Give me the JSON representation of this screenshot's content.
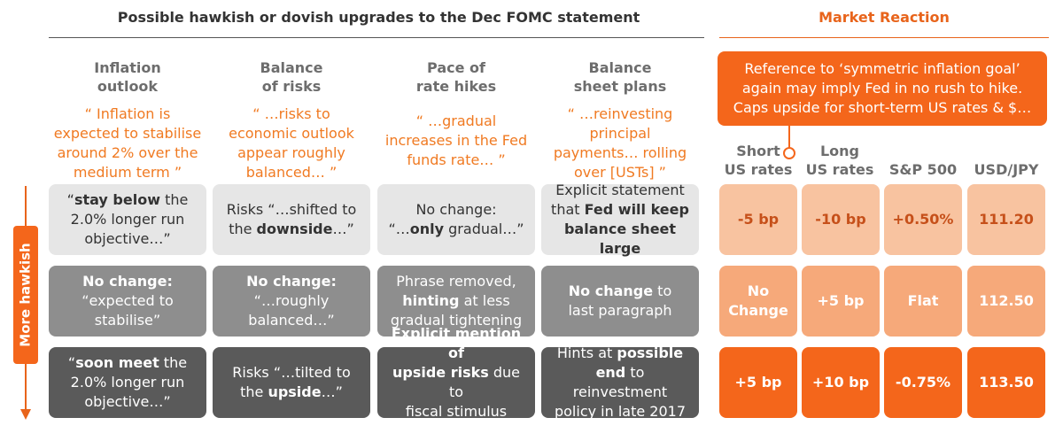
{
  "title_left": "Possible hawkish or dovish upgrades to the Dec FOMC statement",
  "title_right": "Market Reaction",
  "columns": [
    {
      "header": "Inflation\noutlook",
      "quote": "“ Inflation is\nexpected to stabilise\naround 2% over the\nmedium term ”"
    },
    {
      "header": "Balance\nof risks",
      "quote": "“ …risks to\neconomic outlook\nappear roughly\nbalanced… ”"
    },
    {
      "header": "Pace of\nrate hikes",
      "quote": "“ …gradual\nincreases in the Fed\nfunds rate… ”"
    },
    {
      "header": "Balance\nsheet plans",
      "quote": "“ …reinvesting\nprincipal\npayments… rolling\nover [USTs] ”"
    }
  ],
  "rows": [
    [
      [
        {
          "t": "“"
        },
        {
          "t": "stay below",
          "b": true
        },
        {
          "t": " the\n2.0% longer run\nobjective…”"
        }
      ],
      [
        {
          "t": "Risks “…shifted to\nthe "
        },
        {
          "t": "downside",
          "b": true
        },
        {
          "t": "…”"
        }
      ],
      [
        {
          "t": "No change:\n“…"
        },
        {
          "t": "only",
          "b": true
        },
        {
          "t": " gradual…”"
        }
      ],
      [
        {
          "t": "Explicit statement\nthat "
        },
        {
          "t": "Fed will keep\nbalance sheet large",
          "b": true
        }
      ]
    ],
    [
      [
        {
          "t": "No change:",
          "b": true
        },
        {
          "t": "\n“expected to\nstabilise”"
        }
      ],
      [
        {
          "t": "No change:",
          "b": true
        },
        {
          "t": "\n“…roughly\nbalanced…”"
        }
      ],
      [
        {
          "t": "Phrase removed,\n"
        },
        {
          "t": "hinting",
          "b": true
        },
        {
          "t": " at less\ngradual tightening"
        }
      ],
      [
        {
          "t": "No change",
          "b": true
        },
        {
          "t": " to\nlast paragraph"
        }
      ]
    ],
    [
      [
        {
          "t": "“"
        },
        {
          "t": "soon meet",
          "b": true
        },
        {
          "t": " the\n2.0% longer run\nobjective…”"
        }
      ],
      [
        {
          "t": "Risks “…tilted to\nthe "
        },
        {
          "t": "upside",
          "b": true
        },
        {
          "t": "…”"
        }
      ],
      [
        {
          "t": "Explicit mention of\nupside risks",
          "b": true
        },
        {
          "t": " due to\nfiscal stimulus plans"
        }
      ],
      [
        {
          "t": "Hints at "
        },
        {
          "t": "possible\nend",
          "b": true
        },
        {
          "t": " to reinvestment\npolicy in late 2017"
        }
      ]
    ]
  ],
  "callout": "Reference to ‘symmetric inflation goal’\nagain may imply Fed in no rush to hike.\nCaps upside for short-term US rates & $…",
  "market_headers": [
    "Short\nUS rates",
    "Long\nUS rates",
    "S&P 500",
    "USD/JPY"
  ],
  "market_rows": [
    [
      "-5 bp",
      "-10 bp",
      "+0.50%",
      "111.20"
    ],
    [
      "No\nChange",
      "+5 bp",
      "Flat",
      "112.50"
    ],
    [
      "+5 bp",
      "+10 bp",
      "-0.75%",
      "113.50"
    ]
  ],
  "arrow_label": "More hawkish",
  "colors": {
    "accent": "#f4661b",
    "row1": "#e6e6e6",
    "row2": "#8e8e8e",
    "row3": "#5a5a5a"
  }
}
